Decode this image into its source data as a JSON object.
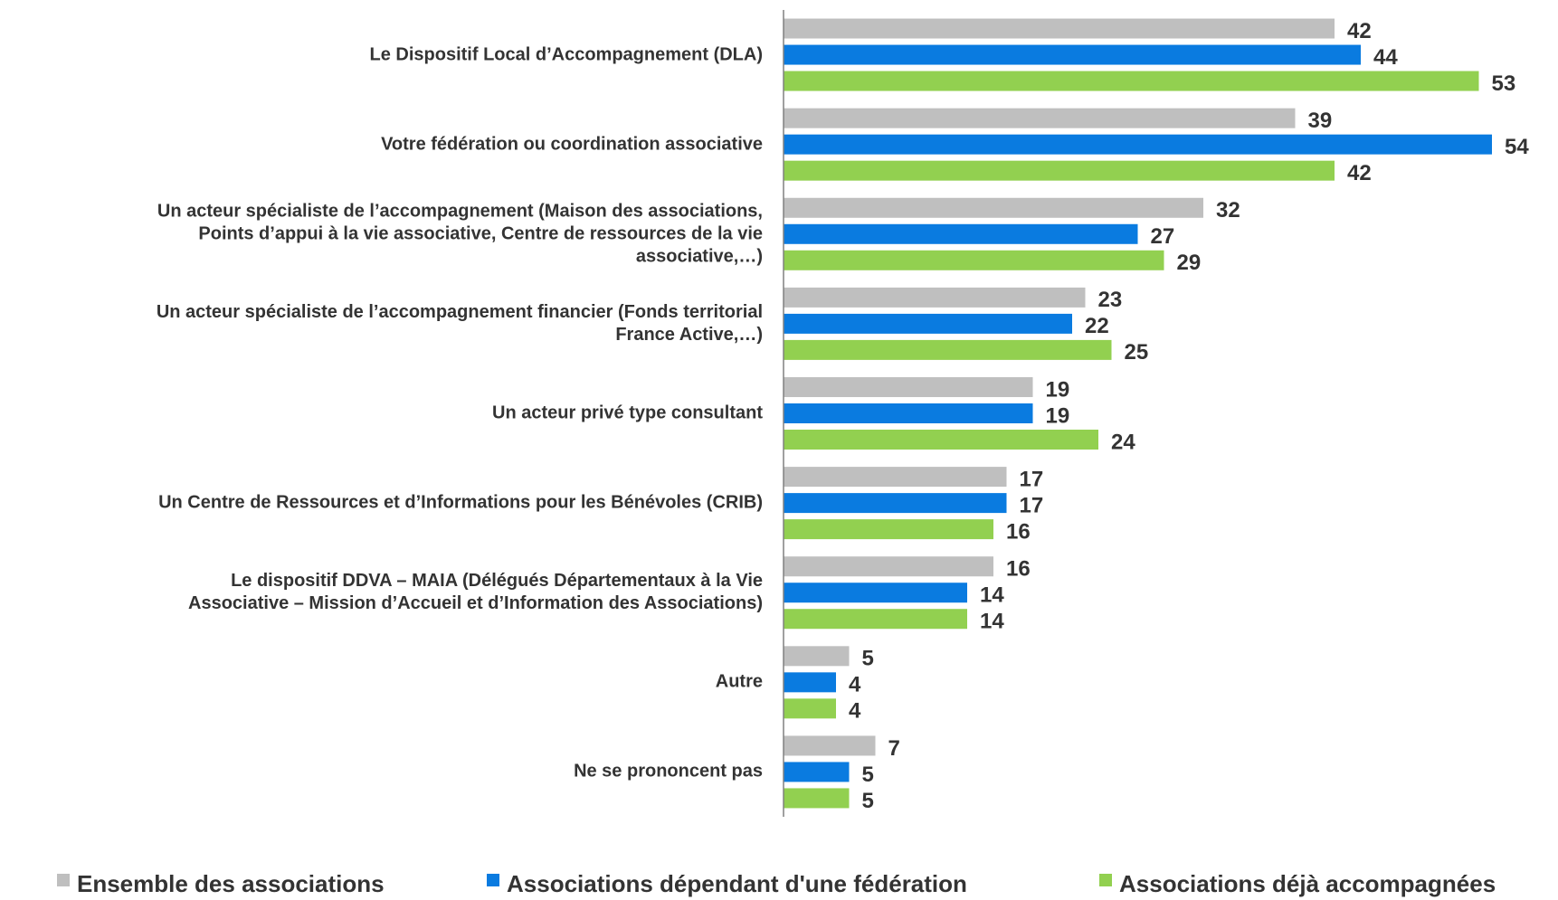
{
  "chart_data": {
    "type": "bar",
    "orientation": "horizontal",
    "categories": [
      "Le Dispositif Local d’Accompagnement (DLA)",
      "Votre fédération ou coordination associative",
      "Un acteur spécialiste de l’accompagnement (Maison des associations,\nPoints d’appui à la vie associative, Centre de ressources de la vie\nassociative,…)",
      "Un acteur spécialiste de l’accompagnement financier (Fonds territorial\nFrance Active,…)",
      "Un acteur privé type consultant",
      "Un Centre de Ressources et d’Informations pour les Bénévoles (CRIB)",
      "Le dispositif DDVA – MAIA (Délégués Départementaux à la Vie\nAssociative – Mission d’Accueil et d’Information des Associations)",
      "Autre",
      "Ne se prononcent pas"
    ],
    "series": [
      {
        "name": "Ensemble des associations",
        "color": "#bfbfbf",
        "values": [
          42,
          39,
          32,
          23,
          19,
          17,
          16,
          5,
          7
        ]
      },
      {
        "name": "Associations dépendant d'une fédération",
        "color": "#0a7be0",
        "values": [
          44,
          54,
          27,
          22,
          19,
          17,
          14,
          4,
          5
        ]
      },
      {
        "name": "Associations déjà accompagnées",
        "color": "#92d050",
        "values": [
          53,
          42,
          29,
          25,
          24,
          16,
          14,
          4,
          5
        ]
      }
    ],
    "xlim": [
      0,
      58
    ],
    "legend": "bottom"
  }
}
